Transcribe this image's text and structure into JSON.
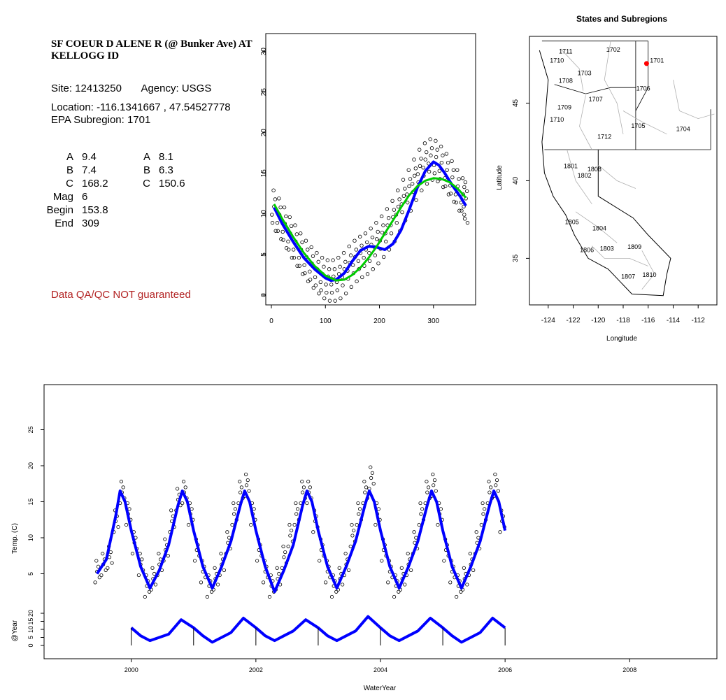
{
  "info": {
    "title": "SF COEUR D ALENE R (@ Bunker Ave) AT KELLOGG ID",
    "site_label": "Site:",
    "site": "12413250",
    "agency_label": "Agency:",
    "agency": "USGS",
    "location_label": "Location:",
    "location": "-116.1341667 , 47.54527778",
    "subregion_label": "EPA Subregion:",
    "subregion": "1701",
    "params_left": [
      {
        "name": "A",
        "value": "9.4"
      },
      {
        "name": "B",
        "value": "7.4"
      },
      {
        "name": "C",
        "value": "168.2"
      },
      {
        "name": "Mag",
        "value": "6"
      },
      {
        "name": "Begin",
        "value": "153.8"
      },
      {
        "name": "End",
        "value": "309"
      }
    ],
    "params_right": [
      {
        "name": "A",
        "value": "8.1"
      },
      {
        "name": "B",
        "value": "6.3"
      },
      {
        "name": "C",
        "value": "150.6"
      }
    ],
    "qa_note": "Data QA/QC NOT guaranteed"
  },
  "colors": {
    "points": "#000000",
    "fit_blue": "#0000ff",
    "fit_green": "#00cc00",
    "site_marker": "#ff0000",
    "qa_text": "#b22222",
    "boundaries": "#b0b0b0"
  },
  "chart_data": [
    {
      "type": "scatter",
      "id": "seasonal",
      "xlim": [
        0,
        365
      ],
      "ylim": [
        0,
        31
      ],
      "x_ticks": [
        0,
        100,
        200,
        300
      ],
      "y_ticks": [
        0,
        5,
        10,
        15,
        20,
        25,
        30
      ],
      "series": [
        {
          "kind": "points",
          "x": [
            5,
            15,
            25,
            35,
            45,
            55,
            65,
            75,
            85,
            95,
            105,
            115,
            125,
            135,
            145,
            155,
            165,
            175,
            185,
            195,
            205,
            215,
            225,
            235,
            245,
            255,
            265,
            275,
            285,
            295,
            305,
            315,
            325,
            335,
            345,
            355,
            360
          ],
          "y": [
            10.5,
            9.5,
            8.4,
            7.2,
            6.2,
            5.2,
            4.3,
            3.5,
            2.8,
            2.2,
            1.9,
            1.9,
            2.2,
            2.8,
            3.6,
            4.3,
            4.8,
            5.2,
            5.8,
            6.5,
            7.3,
            8.2,
            9.2,
            10.5,
            11.8,
            13.0,
            14.3,
            15.5,
            16.3,
            16.8,
            16.6,
            15.9,
            15.0,
            14.1,
            13.0,
            12.0,
            11.5
          ]
        },
        {
          "kind": "line",
          "color": "blue",
          "x": [
            5,
            20,
            40,
            60,
            80,
            100,
            110,
            120,
            135,
            150,
            165,
            180,
            195,
            210,
            225,
            240,
            255,
            270,
            285,
            300,
            310,
            320,
            335,
            350,
            360
          ],
          "y": [
            10.8,
            8.8,
            6.6,
            4.6,
            3.2,
            2.1,
            1.8,
            1.9,
            2.7,
            4.2,
            5.5,
            6.0,
            5.9,
            5.6,
            6.3,
            8.0,
            10.5,
            13.2,
            15.3,
            16.4,
            16.0,
            15.1,
            13.5,
            12.1,
            11.0
          ]
        },
        {
          "kind": "line",
          "color": "green",
          "x": [
            5,
            20,
            40,
            60,
            80,
            100,
            120,
            135,
            150,
            165,
            180,
            195,
            210,
            225,
            240,
            255,
            270,
            285,
            300,
            315,
            330,
            345,
            360
          ],
          "y": [
            11.2,
            9.4,
            7.2,
            5.2,
            3.6,
            2.4,
            1.8,
            1.9,
            2.5,
            3.4,
            4.6,
            6.0,
            7.6,
            9.2,
            10.8,
            12.3,
            13.4,
            14.1,
            14.4,
            14.3,
            13.9,
            13.1,
            12.0
          ]
        }
      ]
    },
    {
      "type": "map",
      "id": "states-subregions",
      "title": "States and Subregions",
      "xlabel": "Longitude",
      "ylabel": "Latitude",
      "xlim": [
        -125.5,
        -110.5
      ],
      "ylim": [
        32,
        49.3
      ],
      "x_ticks": [
        -124,
        -122,
        -120,
        -118,
        -116,
        -114,
        -112
      ],
      "y_ticks": [
        35,
        40,
        45
      ],
      "site": {
        "lon": -116.13,
        "lat": 47.55
      },
      "region_labels": [
        {
          "text": "1702",
          "lon": -118.8,
          "lat": 48.3
        },
        {
          "text": "1711",
          "lon": -122.6,
          "lat": 48.2
        },
        {
          "text": "1710",
          "lon": -123.3,
          "lat": 47.6
        },
        {
          "text": "1701",
          "lon": -115.3,
          "lat": 47.6
        },
        {
          "text": "1703",
          "lon": -121.1,
          "lat": 46.8
        },
        {
          "text": "1708",
          "lon": -122.6,
          "lat": 46.3
        },
        {
          "text": "1706",
          "lon": -116.4,
          "lat": 45.8
        },
        {
          "text": "1707",
          "lon": -120.2,
          "lat": 45.1
        },
        {
          "text": "1709",
          "lon": -122.7,
          "lat": 44.6
        },
        {
          "text": "1710",
          "lon": -123.3,
          "lat": 43.8
        },
        {
          "text": "1705",
          "lon": -116.8,
          "lat": 43.4
        },
        {
          "text": "1704",
          "lon": -113.2,
          "lat": 43.2
        },
        {
          "text": "1712",
          "lon": -119.5,
          "lat": 42.7
        },
        {
          "text": "1801",
          "lon": -122.2,
          "lat": 40.8
        },
        {
          "text": "1808",
          "lon": -120.3,
          "lat": 40.6
        },
        {
          "text": "1802",
          "lon": -121.1,
          "lat": 40.2
        },
        {
          "text": "1805",
          "lon": -122.1,
          "lat": 37.2
        },
        {
          "text": "1804",
          "lon": -119.9,
          "lat": 36.8
        },
        {
          "text": "1806",
          "lon": -120.9,
          "lat": 35.4
        },
        {
          "text": "1803",
          "lon": -119.3,
          "lat": 35.5
        },
        {
          "text": "1809",
          "lon": -117.1,
          "lat": 35.6
        },
        {
          "text": "1810",
          "lon": -115.9,
          "lat": 33.8
        },
        {
          "text": "1807",
          "lon": -117.6,
          "lat": 33.7
        }
      ]
    },
    {
      "type": "scatter",
      "id": "timeseries",
      "ylabel": "Temp. (C)",
      "ylabel2": "@Year",
      "xlabel": "WaterYear",
      "xlim": [
        1998.6,
        2009.4
      ],
      "ylim": [
        0,
        30
      ],
      "x_ticks": [
        2000,
        2002,
        2004,
        2006,
        2008
      ],
      "y_ticks": [
        5,
        10,
        15,
        20,
        25
      ],
      "y2_ticks": [
        0,
        5,
        10,
        15,
        20
      ],
      "series": [
        {
          "kind": "points",
          "x": [
            1999.45,
            1999.55,
            1999.65,
            1999.75,
            1999.85,
            1999.95,
            2000.05,
            2000.15,
            2000.25,
            2000.35,
            2000.45,
            2000.55,
            2000.65,
            2000.75,
            2000.85,
            2000.95,
            2001.05,
            2001.15,
            2001.25,
            2001.35,
            2001.45,
            2001.55,
            2001.65,
            2001.75,
            2001.85,
            2001.95,
            2002.05,
            2002.15,
            2002.25,
            2002.35,
            2002.45,
            2002.55,
            2002.65,
            2002.75,
            2002.85,
            2002.95,
            2003.05,
            2003.15,
            2003.25,
            2003.35,
            2003.45,
            2003.55,
            2003.65,
            2003.75,
            2003.85,
            2003.95,
            2004.05,
            2004.15,
            2004.25,
            2004.35,
            2004.45,
            2004.55,
            2004.65,
            2004.75,
            2004.85,
            2004.95,
            2005.05,
            2005.15,
            2005.25,
            2005.35,
            2005.45,
            2005.55,
            2005.65,
            2005.75,
            2005.85,
            2005.95
          ],
          "y": [
            5,
            6,
            7,
            12,
            16,
            13,
            9,
            6,
            3,
            4,
            6,
            8,
            12,
            15,
            16,
            13,
            8,
            5,
            3,
            4,
            6,
            9,
            13,
            16,
            17,
            13,
            8,
            5,
            3,
            4,
            7,
            10,
            13,
            16,
            16,
            12,
            8,
            5,
            3,
            4,
            6,
            10,
            13,
            16,
            18,
            13,
            8,
            5,
            3,
            4,
            6,
            9,
            13,
            16,
            17,
            13,
            8,
            5,
            3,
            4,
            6,
            9,
            13,
            16,
            17,
            12
          ]
        },
        {
          "kind": "line",
          "color": "blue",
          "x": [
            1999.45,
            1999.6,
            1999.75,
            1999.82,
            1999.9,
            2000.0,
            2000.15,
            2000.3,
            2000.45,
            2000.6,
            2000.75,
            2000.82,
            2000.9,
            2001.0,
            2001.15,
            2001.3,
            2001.45,
            2001.6,
            2001.75,
            2001.82,
            2001.9,
            2002.0,
            2002.15,
            2002.3,
            2002.45,
            2002.6,
            2002.75,
            2002.82,
            2002.9,
            2003.0,
            2003.15,
            2003.3,
            2003.45,
            2003.6,
            2003.75,
            2003.82,
            2003.9,
            2004.0,
            2004.15,
            2004.3,
            2004.45,
            2004.6,
            2004.75,
            2004.82,
            2004.9,
            2005.0,
            2005.15,
            2005.3,
            2005.45,
            2005.6,
            2005.75,
            2005.82,
            2005.9,
            2006.0
          ],
          "y": [
            5,
            7,
            13,
            16.5,
            15,
            11,
            6,
            3,
            5.5,
            9,
            14.5,
            16.5,
            15,
            11,
            6,
            3,
            6,
            9.5,
            14.5,
            16.5,
            15,
            11,
            6,
            2.5,
            5.5,
            9,
            14.5,
            16.5,
            15,
            11,
            6,
            3,
            6,
            9.5,
            14.5,
            16.5,
            15,
            11,
            6,
            3,
            6,
            9.5,
            14.5,
            16.5,
            15,
            11,
            6,
            3,
            6,
            9.5,
            14.5,
            16.5,
            15,
            11
          ]
        }
      ],
      "yearly_strip": {
        "x": [
          2000.0,
          2000.15,
          2000.3,
          2000.45,
          2000.6,
          2000.8,
          2001.0,
          2001.15,
          2001.3,
          2001.45,
          2001.6,
          2001.8,
          2002.0,
          2002.15,
          2002.3,
          2002.45,
          2002.6,
          2002.8,
          2003.0,
          2003.15,
          2003.3,
          2003.45,
          2003.6,
          2003.8,
          2004.0,
          2004.15,
          2004.3,
          2004.45,
          2004.6,
          2004.8,
          2005.0,
          2005.15,
          2005.3,
          2005.45,
          2005.6,
          2005.8,
          2006.0
        ],
        "y": [
          11,
          6,
          3,
          5,
          7,
          16,
          11,
          6,
          2,
          5,
          8,
          17,
          11,
          6,
          3,
          6,
          9,
          16,
          11,
          6,
          3,
          6,
          9,
          18,
          11,
          6,
          3,
          6,
          9,
          17,
          11,
          6,
          2,
          5,
          8,
          17,
          11
        ]
      }
    }
  ]
}
